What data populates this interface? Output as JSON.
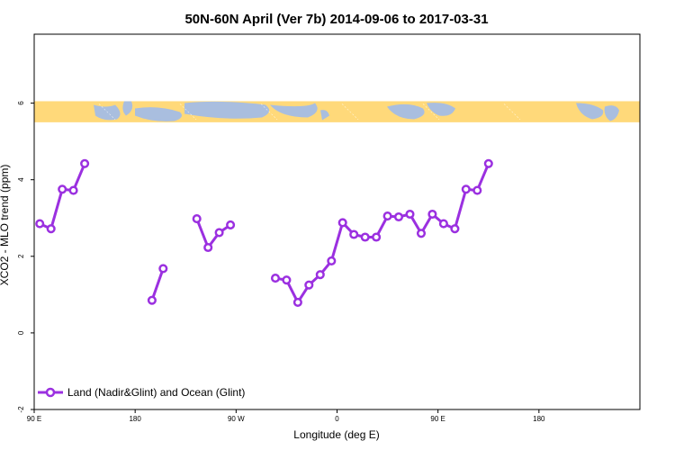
{
  "chart_data": {
    "type": "line",
    "title": "50N-60N April (Ver 7b)   2014-09-06 to 2017-03-31",
    "xlabel": "Longitude (deg E)",
    "ylabel": "XCO2 - MLO trend (ppm)",
    "xlim": [
      -90,
      180
    ],
    "ylim": [
      -2,
      7.8
    ],
    "x_ticks": [
      {
        "value": -90,
        "label": "90 E"
      },
      {
        "value": -45,
        "label": "180"
      },
      {
        "value": 0,
        "label": "90 W"
      },
      {
        "value": 45,
        "label": "0"
      },
      {
        "value": 90,
        "label": "90 E"
      },
      {
        "value": 135,
        "label": "180"
      }
    ],
    "y_ticks": [
      -2,
      0,
      2,
      4,
      6
    ],
    "legend": {
      "position": "bottom-left"
    },
    "map_band": {
      "y_range": [
        5.5,
        6.05
      ],
      "land_color": "#FFD97A",
      "ocean_color": "#A9BEDF"
    },
    "series": [
      {
        "name": "Land (Nadir&Glint) and Ocean (Glint)",
        "color": "#9B30E0",
        "segments": [
          [
            [
              -87.5,
              2.85
            ],
            [
              -82.5,
              2.72
            ],
            [
              -77.5,
              3.75
            ],
            [
              -72.5,
              3.72
            ],
            [
              -67.5,
              4.42
            ]
          ],
          [
            [
              -37.5,
              0.85
            ],
            [
              -32.5,
              1.68
            ]
          ],
          [
            [
              -17.5,
              2.98
            ],
            [
              -12.5,
              2.23
            ],
            [
              -7.5,
              2.62
            ],
            [
              -2.5,
              2.82
            ]
          ],
          [
            [
              17.5,
              1.43
            ],
            [
              22.5,
              1.38
            ],
            [
              27.5,
              0.8
            ],
            [
              32.5,
              1.25
            ],
            [
              37.5,
              1.52
            ],
            [
              42.5,
              1.88
            ],
            [
              47.5,
              2.88
            ],
            [
              52.5,
              2.57
            ],
            [
              57.5,
              2.5
            ],
            [
              62.5,
              2.5
            ],
            [
              67.5,
              3.05
            ],
            [
              72.5,
              3.03
            ],
            [
              77.5,
              3.1
            ],
            [
              82.5,
              2.6
            ],
            [
              87.5,
              3.1
            ],
            [
              92.5,
              2.85
            ],
            [
              97.5,
              2.72
            ],
            [
              102.5,
              3.75
            ],
            [
              107.5,
              3.72
            ],
            [
              112.5,
              4.42
            ]
          ]
        ]
      }
    ]
  }
}
